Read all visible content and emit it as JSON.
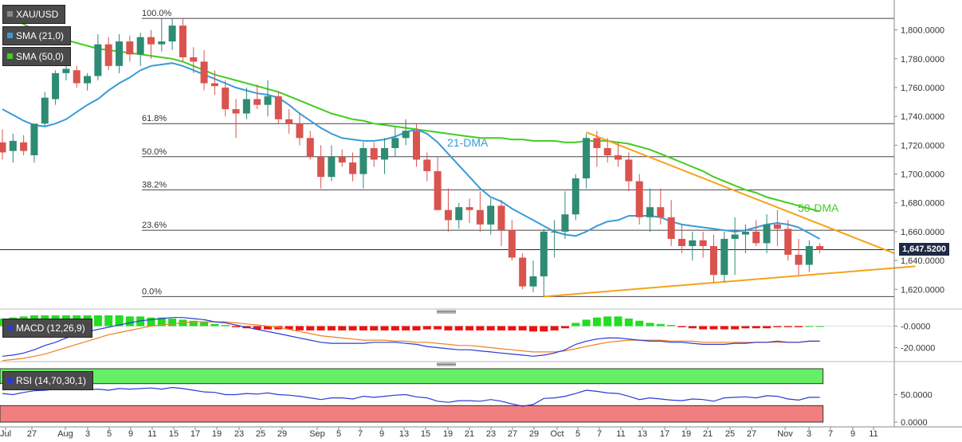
{
  "colors": {
    "up": "#2e8b74",
    "down": "#d9534f",
    "sma21": "#3a9ad9",
    "sma50": "#44cc22",
    "trendline": "#f5a31a",
    "fib": "#444444",
    "macd_line": "#2a3bd6",
    "signal_line": "#f08020",
    "hist_pos": "#22dd22",
    "hist_neg": "#ee1111",
    "rsi_line": "#2a3bd6",
    "rsi_over": "#66ee66",
    "rsi_under": "#f27f7f"
  },
  "legend": {
    "symbol": "XAU/USD",
    "sma21": "SMA (21,0)",
    "sma50": "SMA (50,0)",
    "macd": "MACD (12,26,9)",
    "rsi": "RSI (14,70,30,1)"
  },
  "last_price": "1,647.5200",
  "chart_data": [
    {
      "type": "candlestick",
      "title": "XAU/USD",
      "y_ticks": [
        "1,620.0000",
        "1,640.0000",
        "1,660.0000",
        "1,680.0000",
        "1,700.0000",
        "1,720.0000",
        "1,740.0000",
        "1,760.0000",
        "1,780.0000",
        "1,800.0000"
      ],
      "ylim": [
        1608,
        1818
      ],
      "x_ticks": [
        "Jul",
        "27",
        "Aug",
        "3",
        "5",
        "9",
        "11",
        "15",
        "17",
        "19",
        "23",
        "25",
        "29",
        "Sep",
        "5",
        "7",
        "9",
        "13",
        "15",
        "19",
        "21",
        "23",
        "27",
        "29",
        "Oct",
        "5",
        "7",
        "11",
        "13",
        "17",
        "19",
        "21",
        "25",
        "27",
        "Nov",
        "3",
        "7",
        "9",
        "11"
      ],
      "ohlc": [
        [
          1722,
          1731,
          1710,
          1715
        ],
        [
          1716,
          1728,
          1708,
          1723
        ],
        [
          1722,
          1727,
          1713,
          1716
        ],
        [
          1713,
          1733,
          1708,
          1735
        ],
        [
          1735,
          1757,
          1733,
          1753
        ],
        [
          1752,
          1772,
          1748,
          1770
        ],
        [
          1770,
          1782,
          1765,
          1773
        ],
        [
          1772,
          1775,
          1760,
          1763
        ],
        [
          1763,
          1770,
          1758,
          1768
        ],
        [
          1768,
          1797,
          1765,
          1790
        ],
        [
          1790,
          1795,
          1772,
          1775
        ],
        [
          1775,
          1797,
          1770,
          1792
        ],
        [
          1792,
          1796,
          1778,
          1783
        ],
        [
          1783,
          1798,
          1775,
          1795
        ],
        [
          1795,
          1800,
          1780,
          1790
        ],
        [
          1790,
          1808,
          1785,
          1792
        ],
        [
          1792,
          1808,
          1786,
          1803
        ],
        [
          1803,
          1808,
          1778,
          1781
        ],
        [
          1781,
          1788,
          1770,
          1778
        ],
        [
          1778,
          1786,
          1758,
          1763
        ],
        [
          1763,
          1772,
          1755,
          1761
        ],
        [
          1760,
          1765,
          1740,
          1745
        ],
        [
          1745,
          1752,
          1725,
          1742
        ],
        [
          1742,
          1760,
          1738,
          1752
        ],
        [
          1752,
          1762,
          1745,
          1748
        ],
        [
          1748,
          1765,
          1740,
          1754
        ],
        [
          1754,
          1757,
          1735,
          1738
        ],
        [
          1738,
          1745,
          1728,
          1735
        ],
        [
          1735,
          1742,
          1720,
          1725
        ],
        [
          1725,
          1730,
          1710,
          1712
        ],
        [
          1712,
          1720,
          1690,
          1698
        ],
        [
          1698,
          1720,
          1695,
          1712
        ],
        [
          1712,
          1717,
          1705,
          1708
        ],
        [
          1708,
          1715,
          1695,
          1700
        ],
        [
          1700,
          1722,
          1690,
          1718
        ],
        [
          1718,
          1722,
          1705,
          1710
        ],
        [
          1710,
          1725,
          1700,
          1718
        ],
        [
          1718,
          1733,
          1712,
          1725
        ],
        [
          1725,
          1738,
          1720,
          1730
        ],
        [
          1730,
          1735,
          1705,
          1710
        ],
        [
          1710,
          1715,
          1695,
          1702
        ],
        [
          1702,
          1712,
          1675,
          1675
        ],
        [
          1675,
          1690,
          1660,
          1668
        ],
        [
          1668,
          1680,
          1662,
          1677
        ],
        [
          1677,
          1683,
          1666,
          1675
        ],
        [
          1675,
          1688,
          1660,
          1665
        ],
        [
          1665,
          1683,
          1658,
          1678
        ],
        [
          1678,
          1682,
          1650,
          1661
        ],
        [
          1661,
          1668,
          1640,
          1642
        ],
        [
          1642,
          1645,
          1620,
          1622
        ],
        [
          1622,
          1640,
          1618,
          1629
        ],
        [
          1629,
          1662,
          1615,
          1660
        ],
        [
          1660,
          1668,
          1642,
          1660
        ],
        [
          1660,
          1688,
          1655,
          1672
        ],
        [
          1672,
          1700,
          1668,
          1697
        ],
        [
          1697,
          1728,
          1690,
          1725
        ],
        [
          1725,
          1730,
          1705,
          1718
        ],
        [
          1718,
          1725,
          1708,
          1713
        ],
        [
          1713,
          1722,
          1705,
          1710
        ],
        [
          1710,
          1715,
          1688,
          1695
        ],
        [
          1695,
          1700,
          1665,
          1670
        ],
        [
          1670,
          1690,
          1660,
          1677
        ],
        [
          1677,
          1690,
          1665,
          1670
        ],
        [
          1670,
          1682,
          1650,
          1655
        ],
        [
          1655,
          1665,
          1645,
          1650
        ],
        [
          1650,
          1660,
          1640,
          1654
        ],
        [
          1654,
          1660,
          1642,
          1650
        ],
        [
          1650,
          1658,
          1625,
          1630
        ],
        [
          1630,
          1660,
          1625,
          1655
        ],
        [
          1655,
          1670,
          1630,
          1658
        ],
        [
          1658,
          1665,
          1645,
          1660
        ],
        [
          1660,
          1668,
          1650,
          1652
        ],
        [
          1652,
          1672,
          1645,
          1665
        ],
        [
          1665,
          1675,
          1650,
          1662
        ],
        [
          1662,
          1668,
          1640,
          1644
        ],
        [
          1644,
          1655,
          1630,
          1637
        ],
        [
          1637,
          1654,
          1632,
          1650
        ],
        [
          1650,
          1652,
          1645,
          1647.52
        ]
      ],
      "sma21": [
        1745,
        1741,
        1737,
        1734,
        1733,
        1735,
        1738,
        1743,
        1748,
        1752,
        1758,
        1763,
        1767,
        1772,
        1775,
        1776,
        1777,
        1775,
        1772,
        1769,
        1766,
        1763,
        1760,
        1758,
        1756,
        1755,
        1753,
        1748,
        1742,
        1737,
        1732,
        1728,
        1725,
        1724,
        1723,
        1723,
        1724,
        1726,
        1729,
        1731,
        1728,
        1722,
        1714,
        1706,
        1698,
        1690,
        1684,
        1681,
        1676,
        1672,
        1668,
        1664,
        1660,
        1658,
        1657,
        1660,
        1664,
        1667,
        1668,
        1671,
        1671,
        1671,
        1670,
        1667,
        1665,
        1664,
        1663,
        1662,
        1661,
        1660,
        1661,
        1663,
        1665,
        1666,
        1665,
        1663,
        1659,
        1655
      ],
      "sma50": [
        1812,
        1808,
        1804,
        1800,
        1797,
        1795,
        1793,
        1791,
        1789,
        1787,
        1786,
        1785,
        1784,
        1783,
        1782,
        1781,
        1780,
        1778,
        1775,
        1772,
        1769,
        1767,
        1765,
        1763,
        1761,
        1759,
        1757,
        1754,
        1751,
        1748,
        1745,
        1742,
        1740,
        1738,
        1737,
        1735,
        1734,
        1733,
        1732,
        1731,
        1730,
        1729,
        1728,
        1727,
        1726,
        1725,
        1725,
        1725,
        1724,
        1724,
        1723,
        1723,
        1723,
        1722,
        1722,
        1723,
        1723,
        1723,
        1722,
        1721,
        1719,
        1717,
        1714,
        1711,
        1708,
        1705,
        1702,
        1698,
        1695,
        1692,
        1689,
        1687,
        1684,
        1682,
        1680,
        1678,
        1676,
        1674
      ],
      "fib_levels": [
        {
          "label": "100.0%",
          "value": 1808
        },
        {
          "label": "61.8%",
          "value": 1735
        },
        {
          "label": "50.0%",
          "value": 1712
        },
        {
          "label": "38.2%",
          "value": 1689
        },
        {
          "label": "23.6%",
          "value": 1661
        },
        {
          "label": "0.0%",
          "value": 1615
        }
      ],
      "trendlines": [
        {
          "name": "resistance",
          "from": [
            55,
            1729
          ],
          "to": [
            84,
            1645
          ]
        },
        {
          "name": "support",
          "from": [
            51,
            1615
          ],
          "to": [
            86,
            1636
          ]
        }
      ],
      "annotations": [
        "21-DMA",
        "50-DMA"
      ],
      "current_price": 1647.52
    },
    {
      "type": "bar",
      "title": "MACD (12,26,9)",
      "y_ticks": [
        "-0.0000",
        "-20.0000"
      ],
      "ylim": [
        -30,
        10
      ],
      "histogram": [
        7,
        8,
        9,
        10,
        10,
        10,
        10,
        10,
        10,
        10,
        10,
        10,
        9,
        9,
        8,
        8,
        7,
        6,
        5,
        4,
        2,
        1,
        -1,
        -2,
        -3,
        -3,
        -3,
        -3,
        -4,
        -4,
        -4,
        -4,
        -4,
        -4,
        -4,
        -4,
        -4,
        -4,
        -4,
        -4,
        -3,
        -3,
        -4,
        -4,
        -4,
        -4,
        -4,
        -4,
        -4,
        -4,
        -5,
        -5,
        -4,
        -2,
        3,
        6,
        8,
        9,
        9,
        7,
        5,
        3,
        2,
        1,
        -1,
        -2,
        -3,
        -3,
        -3,
        -3,
        -2,
        -2,
        -2,
        -1,
        -1,
        -1,
        0,
        0
      ],
      "macd": [
        -28,
        -27,
        -25,
        -22,
        -18,
        -15,
        -11,
        -8,
        -5,
        -3,
        -1,
        1,
        3,
        5,
        6,
        7,
        8,
        8,
        7,
        6,
        4,
        3,
        1,
        -1,
        -3,
        -5,
        -7,
        -9,
        -11,
        -13,
        -15,
        -16,
        -16,
        -16,
        -16,
        -15,
        -15,
        -15,
        -16,
        -17,
        -19,
        -20,
        -21,
        -22,
        -22,
        -23,
        -24,
        -25,
        -26,
        -27,
        -28,
        -27,
        -25,
        -22,
        -17,
        -14,
        -12,
        -11,
        -11,
        -12,
        -13,
        -14,
        -14,
        -15,
        -15,
        -16,
        -17,
        -17,
        -17,
        -16,
        -16,
        -15,
        -15,
        -14,
        -15,
        -15,
        -14,
        -14
      ],
      "signal": [
        -32,
        -31,
        -30,
        -28,
        -26,
        -23,
        -20,
        -17,
        -14,
        -11,
        -8,
        -6,
        -4,
        -2,
        0,
        1,
        2,
        3,
        4,
        4,
        4,
        4,
        3,
        2,
        1,
        0,
        -1,
        -3,
        -5,
        -7,
        -9,
        -10,
        -11,
        -12,
        -13,
        -13,
        -13,
        -14,
        -14,
        -15,
        -15,
        -16,
        -17,
        -18,
        -18,
        -19,
        -20,
        -21,
        -22,
        -23,
        -24,
        -24,
        -24,
        -23,
        -21,
        -19,
        -17,
        -15,
        -14,
        -13,
        -13,
        -13,
        -13,
        -14,
        -14,
        -14,
        -15,
        -15,
        -15,
        -15,
        -15,
        -15,
        -15,
        -15,
        -15,
        -15,
        -14,
        -14
      ]
    },
    {
      "type": "line",
      "title": "RSI (14,70,30,1)",
      "y_ticks": [
        "50.0000",
        "0.0000"
      ],
      "ylim": [
        0,
        100
      ],
      "bands": {
        "overbought": 70,
        "oversold": 30
      },
      "rsi": [
        52,
        50,
        54,
        57,
        58,
        60,
        62,
        60,
        59,
        60,
        58,
        61,
        60,
        61,
        62,
        60,
        63,
        61,
        58,
        55,
        54,
        50,
        50,
        52,
        51,
        53,
        50,
        49,
        47,
        44,
        41,
        44,
        44,
        42,
        47,
        45,
        47,
        49,
        50,
        46,
        44,
        38,
        36,
        39,
        39,
        38,
        41,
        38,
        33,
        29,
        32,
        43,
        44,
        47,
        52,
        58,
        56,
        53,
        52,
        47,
        41,
        44,
        42,
        40,
        39,
        42,
        41,
        38,
        44,
        45,
        46,
        44,
        48,
        47,
        42,
        40,
        45,
        45
      ]
    }
  ]
}
